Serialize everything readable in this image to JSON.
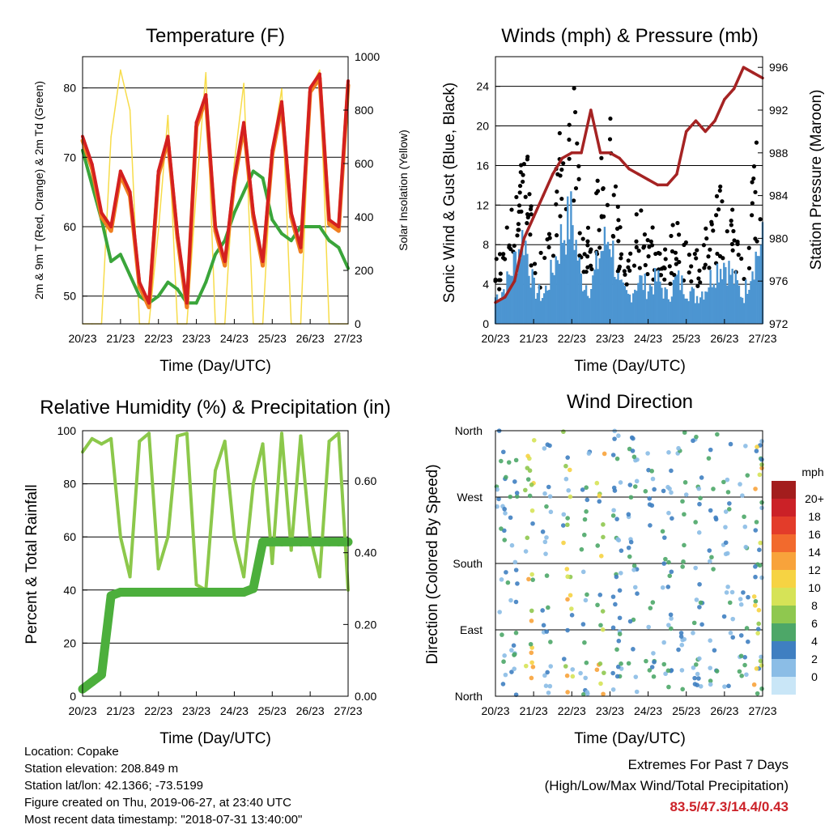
{
  "x_ticks": [
    "20/23",
    "21/23",
    "22/23",
    "23/23",
    "24/23",
    "25/23",
    "26/23",
    "27/23"
  ],
  "footer": {
    "location": "Location: Copake",
    "elevation": "Station elevation: 208.849 m",
    "latlon": "Station lat/lon: 42.1366; -73.5199",
    "created": "Figure created on Thu, 2019-06-27, at 23:40 UTC",
    "recent": "Most recent data timestamp: \"2018-07-31 13:40:00\""
  },
  "extremes": {
    "line1": "Extremes For Past 7 Days",
    "line2": "(High/Low/Max Wind/Total Precipitation)",
    "values": "83.5/47.3/14.4/0.43"
  },
  "colors": {
    "temp2m": "#d42020",
    "temp9m": "#f07f20",
    "dewpoint": "#3aa53a",
    "solar": "#f7dc4a",
    "gust": "#000000",
    "wind": "#4c95d1",
    "pressure": "#a52323",
    "humidity": "#8cc84b",
    "precip": "#4caf3c"
  },
  "chart_data": [
    {
      "type": "line",
      "title": "Temperature (F)",
      "xlabel": "Time (Day/UTC)",
      "ylabel": "2m & 9m T (Red, Orange) & 2m Td (Green)",
      "ylabel_right": "Solar Insolation (Yellow)",
      "ylim": [
        46,
        84.5
      ],
      "ylim_right": [
        0,
        1000
      ],
      "yticks": [
        50,
        60,
        70,
        80
      ],
      "yticks_right": [
        0,
        200,
        400,
        600,
        800,
        1000
      ],
      "x": [
        0,
        0.25,
        0.5,
        0.75,
        1,
        1.25,
        1.5,
        1.75,
        2,
        2.25,
        2.5,
        2.75,
        3,
        3.25,
        3.5,
        3.75,
        4,
        4.25,
        4.5,
        4.75,
        5,
        5.25,
        5.5,
        5.75,
        6,
        6.25,
        6.5,
        6.75,
        7
      ],
      "series": [
        {
          "name": "2m T",
          "values": [
            73,
            69,
            62,
            60,
            68,
            65,
            52,
            49,
            68,
            73,
            59,
            49,
            75,
            79,
            60,
            55,
            67,
            75,
            62,
            55,
            71,
            78,
            62,
            57,
            80,
            82,
            61,
            60,
            81
          ]
        },
        {
          "name": "2m Td",
          "values": [
            71,
            66,
            61,
            55,
            56,
            53,
            50,
            49,
            50,
            52,
            51,
            49,
            49,
            52,
            56,
            58,
            62,
            65,
            68,
            67,
            61,
            59,
            58,
            60,
            60,
            60,
            58,
            57,
            54
          ]
        },
        {
          "name": "Solar Insolation",
          "values": [
            0,
            0,
            0,
            700,
            950,
            800,
            0,
            0,
            350,
            780,
            0,
            0,
            500,
            940,
            0,
            0,
            600,
            900,
            0,
            0,
            650,
            880,
            0,
            0,
            880,
            950,
            0,
            0,
            0
          ]
        }
      ]
    },
    {
      "type": "line",
      "title": "Winds (mph) & Pressure (mb)",
      "xlabel": "Time (Day/UTC)",
      "ylabel": "Sonic Wind & Gust (Blue, Black)",
      "ylabel_right": "Station Pressure (Maroon)",
      "ylim": [
        0,
        27
      ],
      "ylim_right": [
        972,
        997
      ],
      "yticks": [
        0,
        4,
        8,
        12,
        16,
        20,
        24
      ],
      "yticks_right": [
        972,
        976,
        980,
        984,
        988,
        992,
        996
      ],
      "x": [
        0,
        0.25,
        0.5,
        0.75,
        1,
        1.25,
        1.5,
        1.75,
        2,
        2.25,
        2.5,
        2.75,
        3,
        3.25,
        3.5,
        3.75,
        4,
        4.25,
        4.5,
        4.75,
        5,
        5.25,
        5.5,
        5.75,
        6,
        6.25,
        6.5,
        6.75,
        7
      ],
      "series": [
        {
          "name": "Gust",
          "values": [
            5,
            8,
            12,
            18,
            8,
            6,
            10,
            18,
            22,
            10,
            7,
            14,
            18,
            8,
            6,
            10,
            7,
            9,
            6,
            10,
            7,
            6,
            8,
            10,
            12,
            9,
            6,
            13,
            18
          ]
        },
        {
          "name": "Sonic Wind",
          "values": [
            3,
            4,
            7,
            10,
            4,
            3,
            6,
            10,
            12,
            5,
            4,
            8,
            10,
            4,
            3,
            5,
            4,
            5,
            3,
            5,
            4,
            3,
            4,
            6,
            7,
            5,
            3,
            7,
            9
          ]
        },
        {
          "name": "Station Pressure",
          "values": [
            974,
            974.5,
            976,
            980,
            982,
            984,
            986,
            987.5,
            988,
            988,
            992,
            988,
            988,
            987.5,
            986.5,
            986,
            985.5,
            985,
            985,
            986,
            990,
            991,
            990,
            991,
            993,
            994,
            996,
            995.5,
            995
          ]
        }
      ]
    },
    {
      "type": "line",
      "title": "Relative Humidity (%) & Precipitation (in)",
      "xlabel": "Time (Day/UTC)",
      "ylabel": "Percent & Total Rainfall",
      "ylim": [
        0,
        100
      ],
      "ylim_right": [
        0,
        0.74
      ],
      "yticks": [
        0,
        20,
        40,
        60,
        80,
        100
      ],
      "yticks_right": [
        0,
        0.2,
        0.4,
        0.6
      ],
      "ytick_labels_right": [
        "0.00",
        "0.20",
        "0.40",
        "0.60"
      ],
      "x": [
        0,
        0.25,
        0.5,
        0.75,
        1,
        1.25,
        1.5,
        1.75,
        2,
        2.25,
        2.5,
        2.75,
        3,
        3.25,
        3.5,
        3.75,
        4,
        4.25,
        4.5,
        4.75,
        5,
        5.25,
        5.5,
        5.75,
        6,
        6.25,
        6.5,
        6.75,
        7
      ],
      "series": [
        {
          "name": "Relative Humidity",
          "values": [
            92,
            97,
            95,
            97,
            60,
            45,
            96,
            99,
            48,
            60,
            98,
            99,
            42,
            40,
            85,
            96,
            60,
            45,
            80,
            95,
            50,
            99,
            55,
            98,
            60,
            45,
            96,
            99,
            40
          ]
        },
        {
          "name": "Total Precipitation",
          "values": [
            0.02,
            0.04,
            0.06,
            0.28,
            0.29,
            0.29,
            0.29,
            0.29,
            0.29,
            0.29,
            0.29,
            0.29,
            0.29,
            0.29,
            0.29,
            0.29,
            0.29,
            0.29,
            0.3,
            0.43,
            0.43,
            0.43,
            0.43,
            0.43,
            0.43,
            0.43,
            0.43,
            0.43,
            0.43
          ]
        }
      ]
    },
    {
      "type": "scatter",
      "title": "Wind Direction",
      "xlabel": "Time (Day/UTC)",
      "ylabel": "Direction (Colored By Speed)",
      "yticks": [
        "North",
        "East",
        "South",
        "West",
        "North"
      ],
      "colorbar": {
        "title": "mph",
        "labels": [
          "20+",
          "18",
          "16",
          "14",
          "12",
          "10",
          "8",
          "6",
          "4",
          "2",
          "0"
        ],
        "colors": [
          "#a31d1d",
          "#cb2127",
          "#e33c2a",
          "#f26a2d",
          "#f8a33b",
          "#f6d343",
          "#d6e357",
          "#8fc84f",
          "#4da768",
          "#3f7fc1",
          "#8bbde6",
          "#c9e6f7"
        ]
      }
    }
  ]
}
